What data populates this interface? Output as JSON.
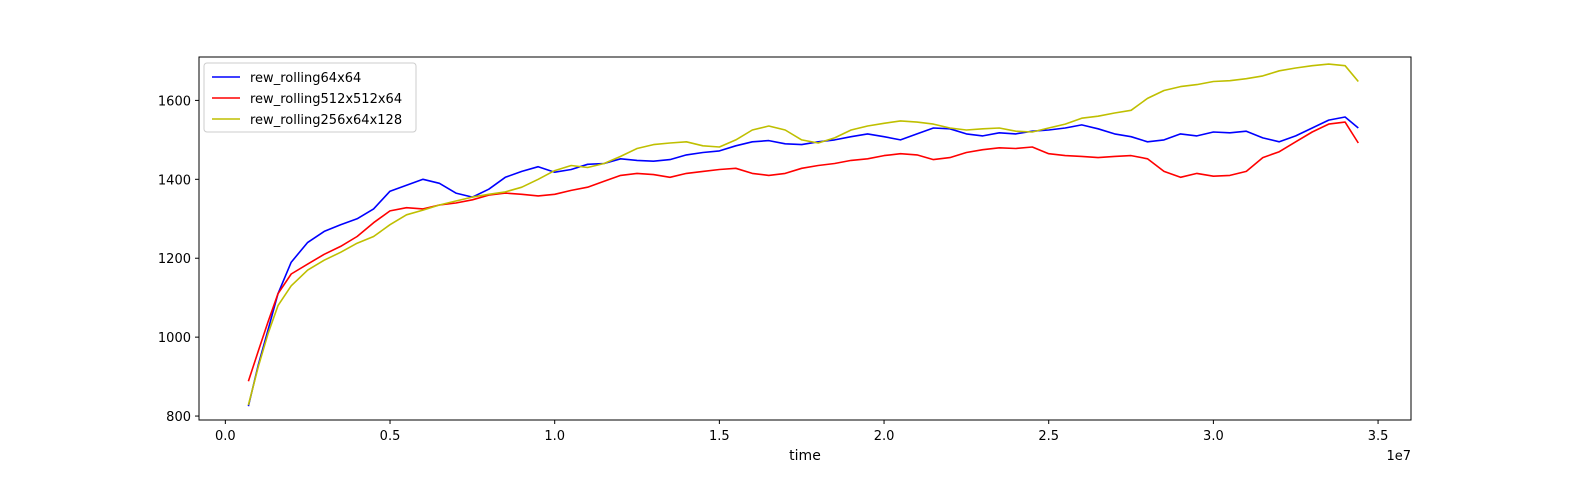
{
  "chart_data": {
    "type": "line",
    "title": "",
    "xlabel": "time",
    "ylabel": "",
    "x_offset_text": "1e7",
    "x_scale_multiplier": 10000000,
    "xlim": [
      -0.08,
      3.6
    ],
    "ylim": [
      790,
      1710
    ],
    "x_ticks": [
      0.0,
      0.5,
      1.0,
      1.5,
      2.0,
      2.5,
      3.0,
      3.5
    ],
    "x_tick_labels": [
      "0.0",
      "0.5",
      "1.0",
      "1.5",
      "2.0",
      "2.5",
      "3.0",
      "3.5"
    ],
    "y_ticks": [
      800,
      1000,
      1200,
      1400,
      1600
    ],
    "y_tick_labels": [
      "800",
      "1000",
      "1200",
      "1400",
      "1600"
    ],
    "grid": false,
    "legend_position": "top-left",
    "series": [
      {
        "name": "rew_rolling64x64",
        "color": "#0000ff",
        "x": [
          0.07,
          0.1,
          0.13,
          0.16,
          0.2,
          0.25,
          0.3,
          0.35,
          0.4,
          0.45,
          0.5,
          0.55,
          0.6,
          0.65,
          0.7,
          0.75,
          0.8,
          0.85,
          0.9,
          0.95,
          1.0,
          1.05,
          1.1,
          1.15,
          1.2,
          1.25,
          1.3,
          1.35,
          1.4,
          1.45,
          1.5,
          1.55,
          1.6,
          1.65,
          1.7,
          1.75,
          1.8,
          1.85,
          1.9,
          1.95,
          2.0,
          2.05,
          2.1,
          2.15,
          2.2,
          2.25,
          2.3,
          2.35,
          2.4,
          2.45,
          2.5,
          2.55,
          2.6,
          2.65,
          2.7,
          2.75,
          2.8,
          2.85,
          2.9,
          2.95,
          3.0,
          3.05,
          3.1,
          3.15,
          3.2,
          3.25,
          3.3,
          3.35,
          3.4,
          3.44
        ],
        "y": [
          825,
          930,
          1020,
          1110,
          1190,
          1240,
          1268,
          1285,
          1300,
          1325,
          1370,
          1385,
          1400,
          1390,
          1365,
          1355,
          1375,
          1405,
          1420,
          1432,
          1418,
          1425,
          1438,
          1440,
          1452,
          1448,
          1446,
          1450,
          1462,
          1468,
          1472,
          1485,
          1495,
          1498,
          1490,
          1488,
          1495,
          1500,
          1508,
          1515,
          1508,
          1500,
          1515,
          1530,
          1528,
          1515,
          1510,
          1518,
          1515,
          1522,
          1525,
          1530,
          1538,
          1528,
          1515,
          1508,
          1495,
          1500,
          1515,
          1510,
          1520,
          1518,
          1522,
          1505,
          1495,
          1510,
          1530,
          1550,
          1558,
          1530
        ]
      },
      {
        "name": "rew_rolling512x512x64",
        "color": "#ff0000",
        "x": [
          0.07,
          0.1,
          0.13,
          0.16,
          0.2,
          0.25,
          0.3,
          0.35,
          0.4,
          0.45,
          0.5,
          0.55,
          0.6,
          0.65,
          0.7,
          0.75,
          0.8,
          0.85,
          0.9,
          0.95,
          1.0,
          1.05,
          1.1,
          1.15,
          1.2,
          1.25,
          1.3,
          1.35,
          1.4,
          1.45,
          1.5,
          1.55,
          1.6,
          1.65,
          1.7,
          1.75,
          1.8,
          1.85,
          1.9,
          1.95,
          2.0,
          2.05,
          2.1,
          2.15,
          2.2,
          2.25,
          2.3,
          2.35,
          2.4,
          2.45,
          2.5,
          2.55,
          2.6,
          2.65,
          2.7,
          2.75,
          2.8,
          2.85,
          2.9,
          2.95,
          3.0,
          3.05,
          3.1,
          3.15,
          3.2,
          3.25,
          3.3,
          3.35,
          3.4,
          3.44
        ],
        "y": [
          888,
          965,
          1040,
          1110,
          1160,
          1185,
          1210,
          1230,
          1255,
          1290,
          1320,
          1328,
          1325,
          1335,
          1340,
          1348,
          1360,
          1365,
          1362,
          1358,
          1362,
          1372,
          1380,
          1395,
          1410,
          1415,
          1412,
          1405,
          1415,
          1420,
          1425,
          1428,
          1415,
          1410,
          1415,
          1428,
          1435,
          1440,
          1448,
          1452,
          1460,
          1465,
          1462,
          1450,
          1455,
          1468,
          1475,
          1480,
          1478,
          1482,
          1465,
          1460,
          1458,
          1455,
          1458,
          1460,
          1452,
          1420,
          1405,
          1415,
          1408,
          1410,
          1420,
          1455,
          1470,
          1495,
          1520,
          1540,
          1545,
          1492
        ]
      },
      {
        "name": "rew_rolling256x64x128",
        "color": "#bfbf00",
        "x": [
          0.07,
          0.1,
          0.13,
          0.16,
          0.2,
          0.25,
          0.3,
          0.35,
          0.4,
          0.45,
          0.5,
          0.55,
          0.6,
          0.65,
          0.7,
          0.75,
          0.8,
          0.85,
          0.9,
          0.95,
          1.0,
          1.05,
          1.1,
          1.15,
          1.2,
          1.25,
          1.3,
          1.35,
          1.4,
          1.45,
          1.5,
          1.55,
          1.6,
          1.65,
          1.7,
          1.75,
          1.8,
          1.85,
          1.9,
          1.95,
          2.0,
          2.05,
          2.1,
          2.15,
          2.2,
          2.25,
          2.3,
          2.35,
          2.4,
          2.45,
          2.5,
          2.55,
          2.6,
          2.65,
          2.7,
          2.75,
          2.8,
          2.85,
          2.9,
          2.95,
          3.0,
          3.05,
          3.1,
          3.15,
          3.2,
          3.25,
          3.3,
          3.35,
          3.4,
          3.44
        ],
        "y": [
          828,
          925,
          1010,
          1080,
          1130,
          1170,
          1195,
          1215,
          1238,
          1255,
          1285,
          1310,
          1322,
          1335,
          1345,
          1355,
          1362,
          1368,
          1380,
          1400,
          1422,
          1435,
          1430,
          1440,
          1458,
          1478,
          1488,
          1492,
          1495,
          1485,
          1482,
          1500,
          1525,
          1535,
          1525,
          1500,
          1492,
          1505,
          1525,
          1535,
          1542,
          1548,
          1545,
          1540,
          1530,
          1525,
          1528,
          1530,
          1522,
          1520,
          1530,
          1540,
          1555,
          1560,
          1568,
          1575,
          1605,
          1625,
          1635,
          1640,
          1648,
          1650,
          1655,
          1662,
          1675,
          1682,
          1688,
          1692,
          1688,
          1648
        ]
      }
    ]
  }
}
